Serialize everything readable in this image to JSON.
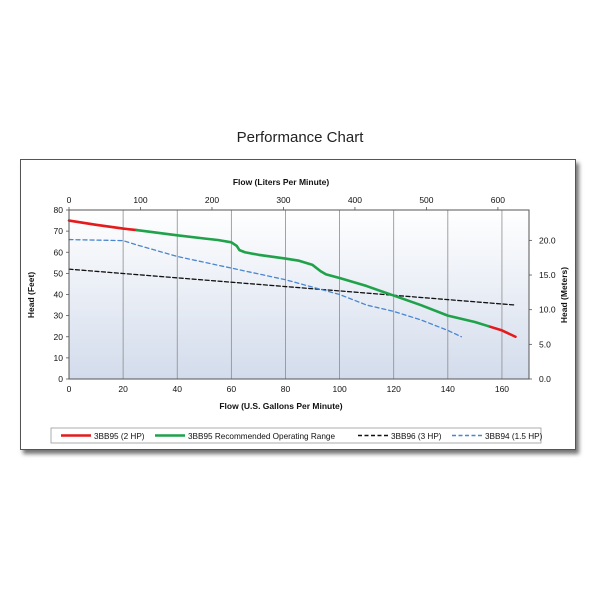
{
  "page": {
    "title": "Performance Chart"
  },
  "chart_data": {
    "type": "line",
    "x_bottom": {
      "label": "Flow (U.S. Gallons Per Minute)",
      "range": [
        0,
        170
      ],
      "ticks": [
        0,
        20,
        40,
        60,
        80,
        100,
        120,
        140,
        160
      ]
    },
    "x_top": {
      "label": "Flow (Liters Per Minute)",
      "range": [
        0,
        643.5
      ],
      "ticks": [
        0,
        100,
        200,
        300,
        400,
        500,
        600
      ]
    },
    "y_left": {
      "label": "Head (Feet)",
      "range": [
        0,
        80
      ],
      "ticks": [
        0,
        10,
        20,
        30,
        40,
        50,
        60,
        70,
        80
      ]
    },
    "y_right": {
      "label": "Head (Meters)",
      "range": [
        0,
        24.38
      ],
      "ticks": [
        "0.0",
        "5.0",
        "10.0",
        "15.0",
        "20.0"
      ]
    },
    "grid": "vertical",
    "legend_position": "bottom",
    "series": [
      {
        "name": "3BB95 (2 HP)",
        "color": "#e41a1c",
        "style": "solid",
        "x": [
          0,
          10,
          20,
          25
        ],
        "y": [
          75,
          73,
          71.2,
          70.5
        ]
      },
      {
        "name": "3BB95 (2 HP)",
        "color": "#e41a1c",
        "style": "solid",
        "legend": false,
        "x": [
          155,
          160,
          165
        ],
        "y": [
          25,
          23,
          20
        ]
      },
      {
        "name": "3BB95 Recommended Operating Range",
        "color": "#1fa24a",
        "style": "solid",
        "x": [
          25,
          40,
          50,
          55,
          60,
          62,
          63,
          65,
          70,
          80,
          85,
          90,
          93,
          95,
          100,
          110,
          120,
          130,
          140,
          150,
          155
        ],
        "y": [
          70.5,
          68,
          66.5,
          65.8,
          64.7,
          63,
          61,
          60,
          58.8,
          57,
          56,
          54,
          51,
          49.5,
          47.8,
          44,
          39.5,
          35,
          30,
          27,
          25
        ]
      },
      {
        "name": "3BB96 (3 HP)",
        "color": "#111111",
        "style": "dashed",
        "x": [
          0,
          165
        ],
        "y": [
          52,
          35
        ]
      },
      {
        "name": "3BB94 (1.5 HP)",
        "color": "#4a86cf",
        "style": "dashed",
        "x": [
          0,
          20,
          25,
          40,
          60,
          80,
          90,
          100,
          110,
          120,
          130,
          140,
          145
        ],
        "y": [
          66,
          65.5,
          63.5,
          58,
          52.5,
          47,
          43.5,
          40,
          35,
          32,
          28,
          23,
          20
        ]
      }
    ]
  }
}
